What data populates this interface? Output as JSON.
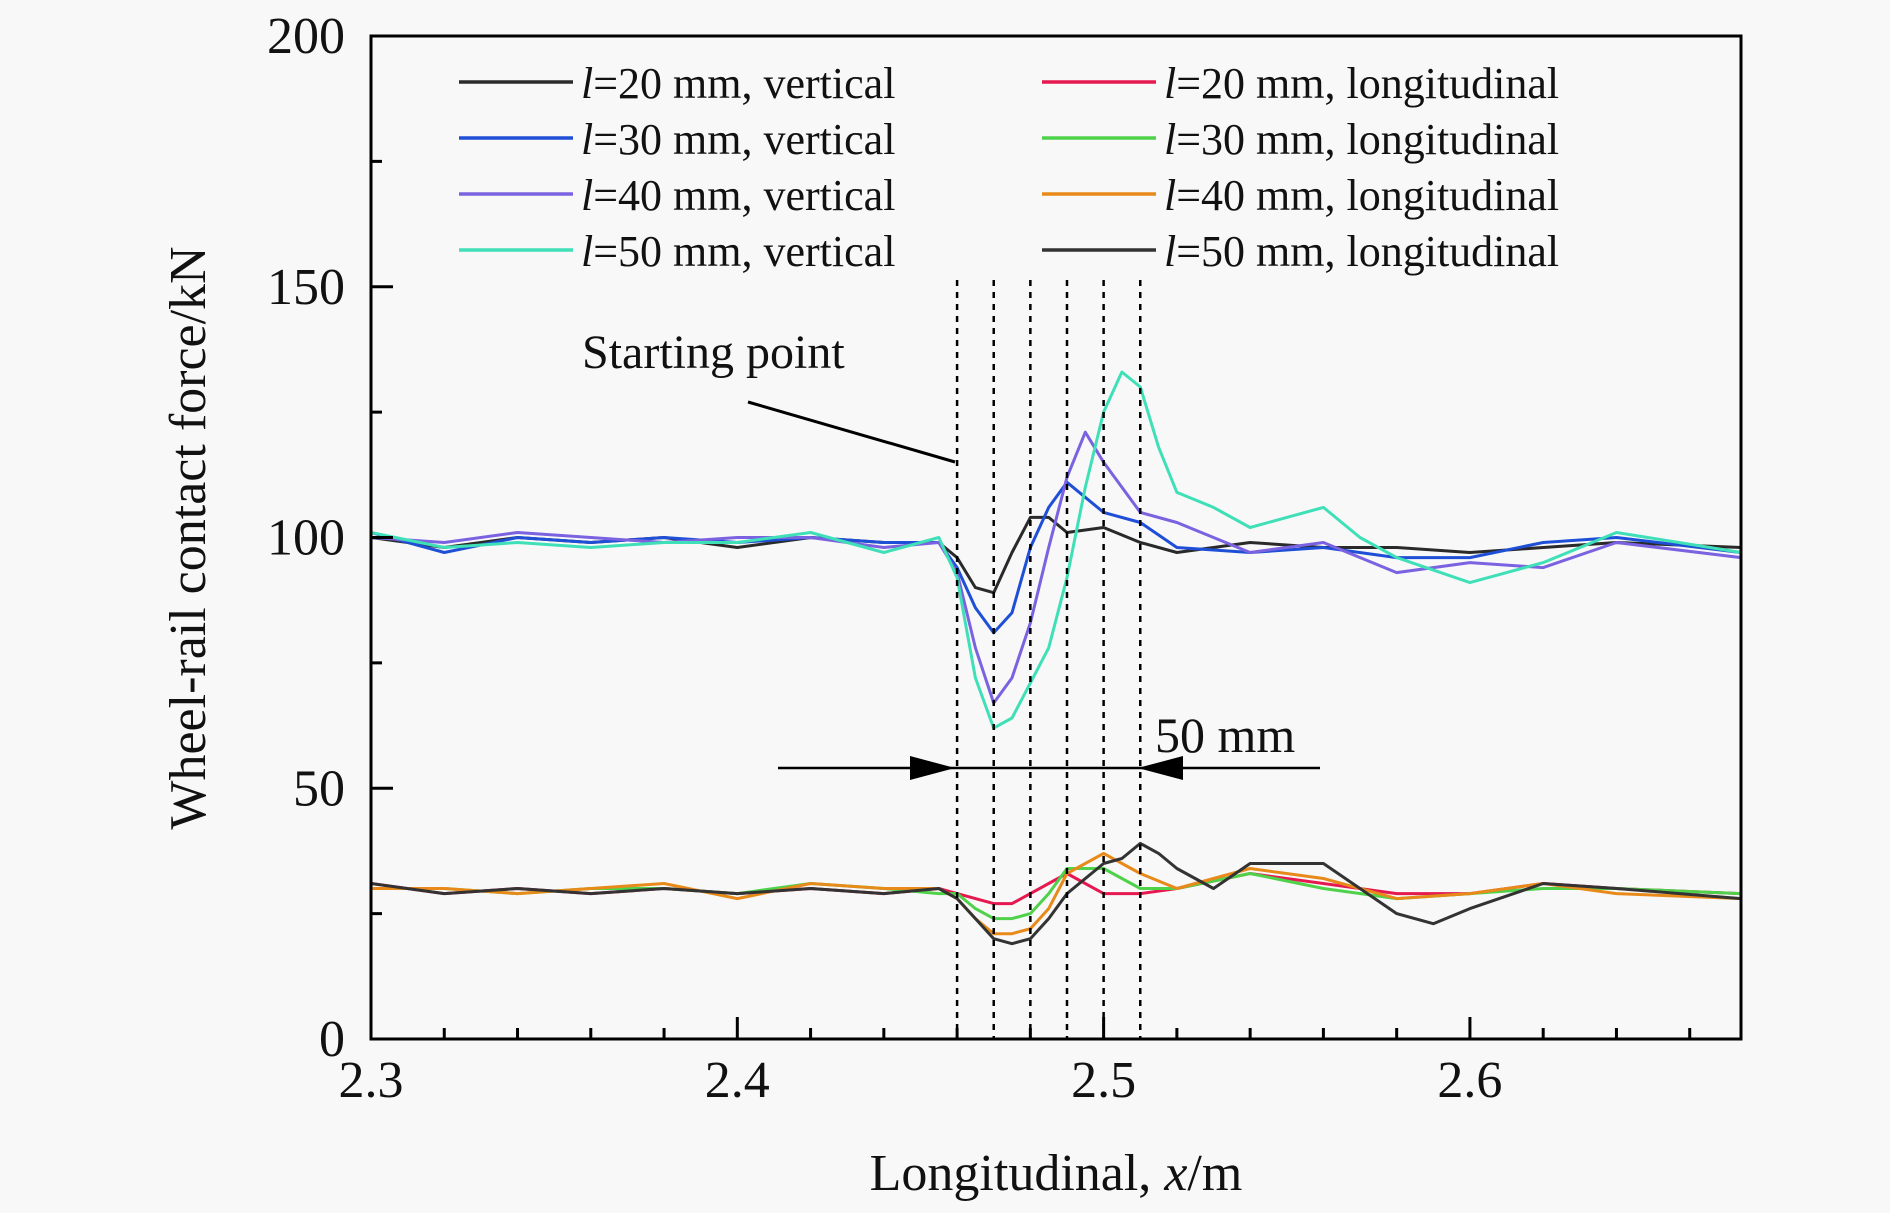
{
  "chart_data": {
    "type": "line",
    "title": "",
    "xlabel": "Longitudinal, x/m",
    "ylabel": "Wheel-rail contact force/kN",
    "xlim": [
      2.3,
      2.674
    ],
    "ylim": [
      0,
      200
    ],
    "xticks": [
      2.3,
      2.4,
      2.5,
      2.6
    ],
    "xtick_labels": [
      "2.3",
      "2.4",
      "2.5",
      "2.6"
    ],
    "yticks": [
      0,
      50,
      100,
      150,
      200
    ],
    "ytick_labels": [
      "0",
      "50",
      "100",
      "150",
      "200"
    ],
    "grid": false,
    "legend_position": "top",
    "annotations": {
      "starting_point": {
        "text": "Starting point",
        "x": 2.46,
        "y": 114
      },
      "span": {
        "text": "50 mm",
        "from": 2.46,
        "to": 2.51,
        "y": 51
      },
      "dashed_lines_x": [
        2.46,
        2.47,
        2.48,
        2.49,
        2.5,
        2.51
      ]
    },
    "series": [
      {
        "name": "l=20 mm, vertical",
        "label_prefix": "l",
        "label_rest": "=20 mm, vertical",
        "color": "#2a2a2a",
        "x": [
          2.3,
          2.32,
          2.34,
          2.36,
          2.38,
          2.4,
          2.42,
          2.44,
          2.455,
          2.46,
          2.465,
          2.47,
          2.475,
          2.48,
          2.485,
          2.49,
          2.5,
          2.51,
          2.52,
          2.54,
          2.56,
          2.58,
          2.6,
          2.62,
          2.64,
          2.674
        ],
        "y": [
          100,
          98,
          100,
          99,
          100,
          98,
          100,
          99,
          99,
          96,
          90,
          89,
          97,
          104,
          104,
          101,
          102,
          99,
          97,
          99,
          98,
          98,
          97,
          98,
          99,
          98
        ]
      },
      {
        "name": "l=30 mm, vertical",
        "label_prefix": "l",
        "label_rest": "=30 mm, vertical",
        "color": "#1f4fd6",
        "x": [
          2.3,
          2.32,
          2.34,
          2.36,
          2.38,
          2.4,
          2.42,
          2.44,
          2.455,
          2.46,
          2.465,
          2.47,
          2.475,
          2.48,
          2.485,
          2.49,
          2.5,
          2.51,
          2.52,
          2.54,
          2.56,
          2.58,
          2.6,
          2.62,
          2.64,
          2.674
        ],
        "y": [
          101,
          97,
          100,
          99,
          100,
          99,
          100,
          99,
          99,
          94,
          86,
          81,
          85,
          98,
          106,
          111,
          105,
          103,
          98,
          97,
          98,
          96,
          96,
          99,
          100,
          97
        ]
      },
      {
        "name": "l=40 mm, vertical",
        "label_prefix": "l",
        "label_rest": "=40 mm, vertical",
        "color": "#7b62e0",
        "x": [
          2.3,
          2.32,
          2.34,
          2.36,
          2.38,
          2.4,
          2.42,
          2.44,
          2.455,
          2.46,
          2.465,
          2.47,
          2.475,
          2.48,
          2.485,
          2.49,
          2.495,
          2.5,
          2.51,
          2.52,
          2.54,
          2.56,
          2.58,
          2.6,
          2.62,
          2.64,
          2.674
        ],
        "y": [
          100,
          99,
          101,
          100,
          99,
          100,
          100,
          98,
          99,
          93,
          78,
          67,
          72,
          83,
          98,
          112,
          121,
          115,
          105,
          103,
          97,
          99,
          93,
          95,
          94,
          99,
          96
        ]
      },
      {
        "name": "l=50 mm, vertical",
        "label_prefix": "l",
        "label_rest": "=50 mm, vertical",
        "color": "#3fe0b8",
        "x": [
          2.3,
          2.32,
          2.34,
          2.36,
          2.38,
          2.4,
          2.42,
          2.44,
          2.455,
          2.46,
          2.465,
          2.47,
          2.475,
          2.48,
          2.485,
          2.49,
          2.495,
          2.5,
          2.505,
          2.51,
          2.515,
          2.52,
          2.53,
          2.54,
          2.55,
          2.56,
          2.57,
          2.58,
          2.6,
          2.62,
          2.64,
          2.674
        ],
        "y": [
          101,
          98,
          99,
          98,
          99,
          99,
          101,
          97,
          100,
          92,
          72,
          62,
          64,
          71,
          78,
          92,
          110,
          125,
          133,
          130,
          118,
          109,
          106,
          102,
          104,
          106,
          100,
          96,
          91,
          95,
          101,
          97
        ]
      },
      {
        "name": "l=20 mm, longitudinal",
        "label_prefix": "l",
        "label_rest": "=20 mm, longitudinal",
        "color": "#e5194f",
        "x": [
          2.3,
          2.32,
          2.34,
          2.36,
          2.38,
          2.4,
          2.42,
          2.44,
          2.455,
          2.46,
          2.465,
          2.47,
          2.475,
          2.48,
          2.485,
          2.49,
          2.5,
          2.51,
          2.52,
          2.54,
          2.56,
          2.58,
          2.6,
          2.62,
          2.64,
          2.674
        ],
        "y": [
          31,
          29,
          30,
          29,
          30,
          29,
          30,
          29,
          30,
          29,
          28,
          27,
          27,
          29,
          31,
          33,
          29,
          29,
          30,
          33,
          31,
          29,
          29,
          31,
          30,
          29
        ]
      },
      {
        "name": "l=30 mm, longitudinal",
        "label_prefix": "l",
        "label_rest": "=30 mm, longitudinal",
        "color": "#4fd24a",
        "x": [
          2.3,
          2.32,
          2.34,
          2.36,
          2.38,
          2.4,
          2.42,
          2.44,
          2.455,
          2.46,
          2.465,
          2.47,
          2.475,
          2.48,
          2.485,
          2.49,
          2.5,
          2.51,
          2.52,
          2.54,
          2.56,
          2.58,
          2.6,
          2.62,
          2.64,
          2.674
        ],
        "y": [
          30,
          30,
          29,
          30,
          30,
          29,
          31,
          30,
          29,
          29,
          26,
          24,
          24,
          25,
          29,
          34,
          34,
          30,
          30,
          33,
          30,
          28,
          29,
          30,
          30,
          29
        ]
      },
      {
        "name": "l=40 mm, longitudinal",
        "label_prefix": "l",
        "label_rest": "=40 mm, longitudinal",
        "color": "#e88a1a",
        "x": [
          2.3,
          2.32,
          2.34,
          2.36,
          2.38,
          2.4,
          2.42,
          2.44,
          2.455,
          2.46,
          2.465,
          2.47,
          2.475,
          2.48,
          2.485,
          2.49,
          2.5,
          2.51,
          2.52,
          2.54,
          2.56,
          2.58,
          2.6,
          2.62,
          2.64,
          2.674
        ],
        "y": [
          30,
          30,
          29,
          30,
          31,
          28,
          31,
          30,
          30,
          28,
          24,
          21,
          21,
          22,
          26,
          33,
          37,
          33,
          30,
          34,
          32,
          28,
          29,
          31,
          29,
          28
        ]
      },
      {
        "name": "l=50 mm, longitudinal",
        "label_prefix": "l",
        "label_rest": "=50 mm, longitudinal",
        "color": "#333333",
        "x": [
          2.3,
          2.32,
          2.34,
          2.36,
          2.38,
          2.4,
          2.42,
          2.44,
          2.455,
          2.46,
          2.465,
          2.47,
          2.475,
          2.48,
          2.485,
          2.49,
          2.5,
          2.505,
          2.51,
          2.515,
          2.52,
          2.53,
          2.54,
          2.55,
          2.56,
          2.57,
          2.58,
          2.59,
          2.6,
          2.62,
          2.64,
          2.674
        ],
        "y": [
          31,
          29,
          30,
          29,
          30,
          29,
          30,
          29,
          30,
          28,
          24,
          20,
          19,
          20,
          24,
          29,
          35,
          36,
          39,
          37,
          34,
          30,
          35,
          35,
          35,
          30,
          25,
          23,
          26,
          31,
          30,
          28
        ]
      }
    ]
  }
}
